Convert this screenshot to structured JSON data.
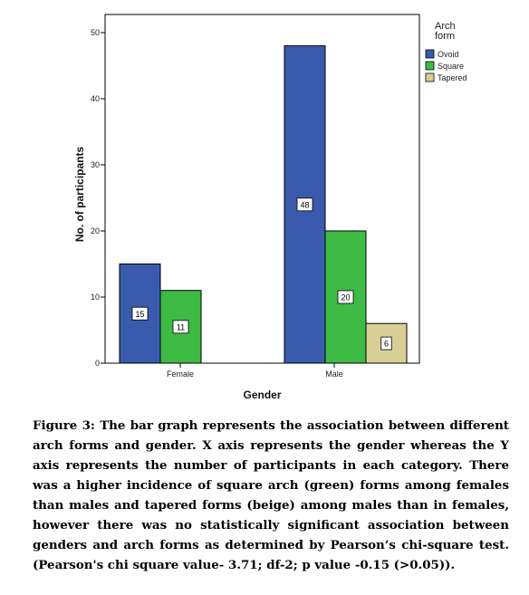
{
  "chart_data": {
    "type": "bar",
    "categories": [
      "Female",
      "Male"
    ],
    "series": [
      {
        "name": "Ovoid",
        "values": [
          15,
          48
        ],
        "color": "#3a5aad"
      },
      {
        "name": "Square",
        "values": [
          11,
          20
        ],
        "color": "#3dbb45"
      },
      {
        "name": "Tapered",
        "values": [
          null,
          6
        ],
        "color": "#d8cf96"
      }
    ],
    "data_labels": [
      [
        "15",
        "11",
        null
      ],
      [
        "48",
        "20",
        "6"
      ]
    ],
    "xlabel": "Gender",
    "ylabel": "No. of participants",
    "ylim": [
      0,
      50
    ],
    "yticks": [
      0,
      10,
      20,
      30,
      40,
      50
    ],
    "legend_title": "Arch form",
    "legend_title_lines": [
      "Arch",
      "form"
    ],
    "legend_position": "top-right",
    "grid": false
  },
  "caption": "Figure 3: The bar graph represents the association between different arch forms and gender. X axis represents the gender whereas the Y axis represents the number of participants in each category. There was a higher incidence of square arch (green) forms among females than males and tapered forms (beige) among males than in females, however there was no statistically significant association between genders and arch forms as determined by Pearson’s chi-square test. (Pearson's chi square value- 3.71; df-2; p value -0.15 (>0.05))."
}
